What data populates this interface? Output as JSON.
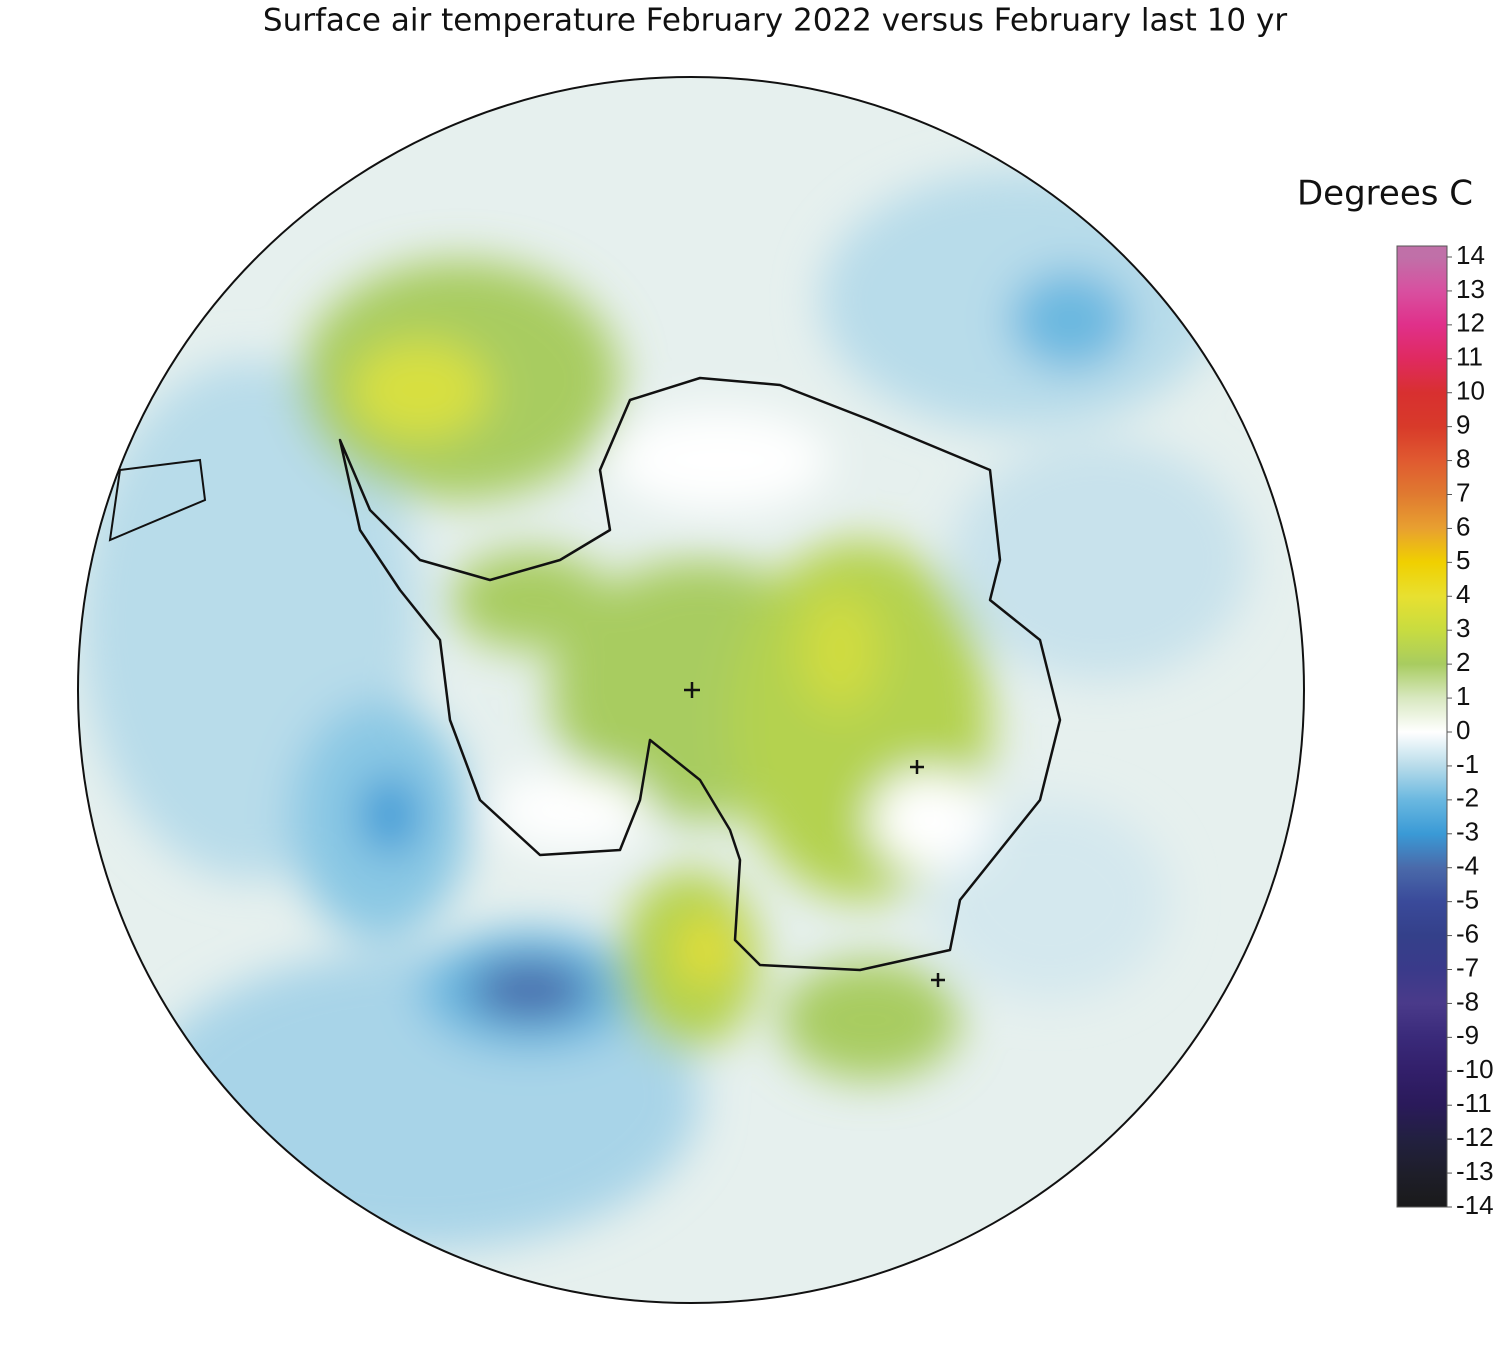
{
  "title": "Surface air temperature February 2022 versus February last 10 yr",
  "colorbar": {
    "label": "Degrees C",
    "range": [
      -14,
      14
    ],
    "ticks": [
      14,
      13,
      12,
      11,
      10,
      9,
      8,
      7,
      6,
      5,
      4,
      3,
      2,
      1,
      0,
      -1,
      -2,
      -3,
      -4,
      -5,
      -6,
      -7,
      -8,
      -9,
      -10,
      -11,
      -12,
      -13,
      -14
    ],
    "colors": [
      "#c070a8",
      "#d850a0",
      "#e0308a",
      "#e02a60",
      "#d83030",
      "#d83a2a",
      "#e05a30",
      "#e07a30",
      "#e8a030",
      "#f0d000",
      "#e8e030",
      "#c8dc40",
      "#a8cc60",
      "#d8e8c0",
      "#ffffff",
      "#b8dcea",
      "#6ab8e0",
      "#3a9ad6",
      "#4a6aaa",
      "#3a4a9a",
      "#34408a",
      "#3a3a8a",
      "#4a3a8a",
      "#3a2a7a",
      "#321f6a",
      "#2a1a5a",
      "#222040",
      "#1e1e2a",
      "#1a1a1a"
    ]
  }
}
